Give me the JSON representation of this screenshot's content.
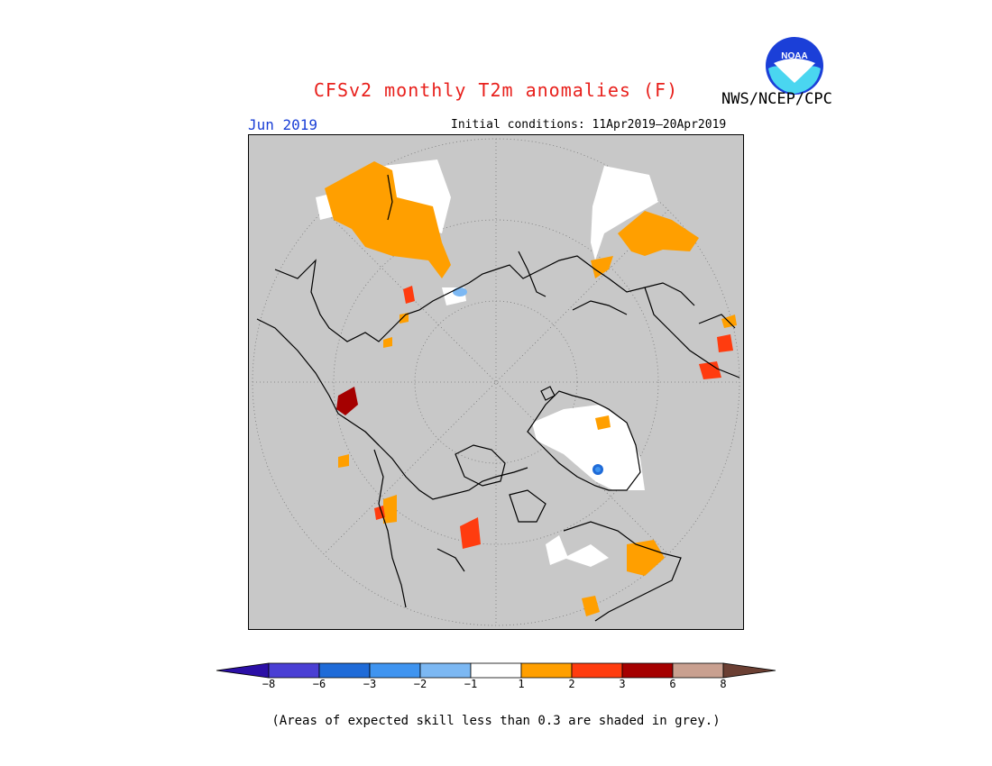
{
  "header": {
    "title": "CFSv2 monthly T2m anomalies (F)",
    "org": "NWS/NCEP/CPC",
    "logo_text": "NOAA",
    "month": "Jun 2019",
    "initial_conditions": "Initial conditions: 11Apr2019–20Apr2019"
  },
  "colorbar": {
    "ticks": [
      "−8",
      "−6",
      "−3",
      "−2",
      "−1",
      "1",
      "2",
      "3",
      "6",
      "8"
    ],
    "colors": [
      "#2b0fa6",
      "#4a3fd4",
      "#1f6bd8",
      "#3f94f0",
      "#7cb8f3",
      "#ffffff",
      "#ff9f00",
      "#ff3c0f",
      "#a50000",
      "#c9a090",
      "#6b3f33"
    ]
  },
  "footnote": "(Areas of expected skill less than 0.3 are shaded in grey.)"
}
